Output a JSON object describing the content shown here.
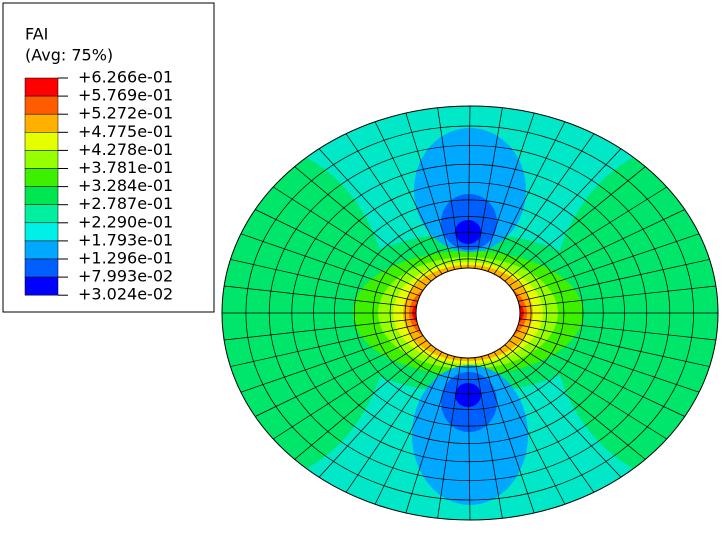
{
  "legend": {
    "title": "FAI",
    "subtitle": "(Avg: 75%)",
    "levels": [
      "+6.266e-01",
      "+5.769e-01",
      "+5.272e-01",
      "+4.775e-01",
      "+4.278e-01",
      "+3.781e-01",
      "+3.284e-01",
      "+2.787e-01",
      "+2.290e-01",
      "+1.793e-01",
      "+1.296e-01",
      "+7.993e-02",
      "+3.024e-02"
    ],
    "colors": [
      "#ff0000",
      "#ff5c00",
      "#ffb000",
      "#e6ff00",
      "#96ff00",
      "#3cf000",
      "#00e650",
      "#00f0a0",
      "#00f0e8",
      "#00a8ff",
      "#0060ff",
      "#0000ff"
    ]
  }
}
